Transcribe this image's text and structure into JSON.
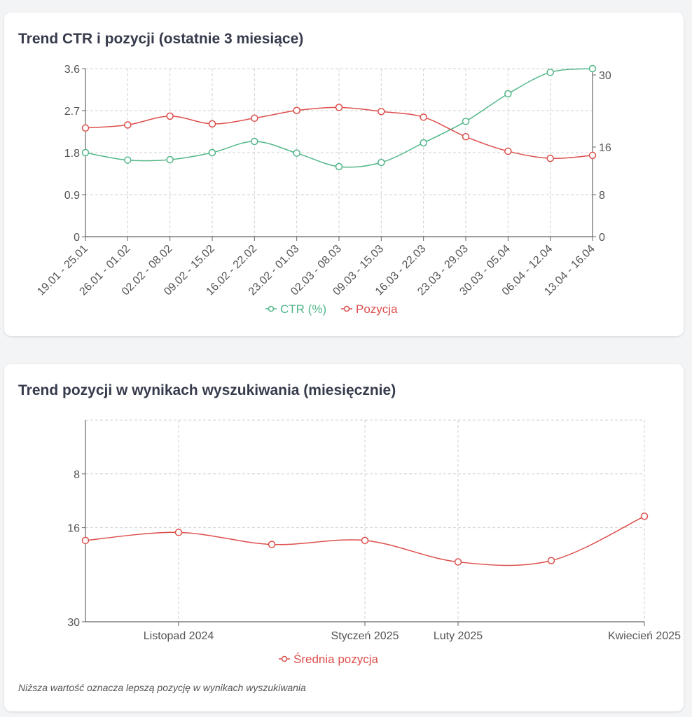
{
  "colors": {
    "ctr": "#52b788",
    "position": "#dc4f4b",
    "grid": "#d0d0d0",
    "axis": "#666666"
  },
  "chart_data": [
    {
      "type": "line",
      "title": "Trend CTR i pozycji (ostatnie 3 miesiące)",
      "categories": [
        "19.01 - 25.01",
        "26.01 - 01.02",
        "02.02 - 08.02",
        "09.02 - 15.02",
        "16.02 - 22.02",
        "23.02 - 01.03",
        "02.03 - 08.03",
        "09.03 - 15.03",
        "16.03 - 22.03",
        "23.03 - 29.03",
        "30.03 - 05.04",
        "06.04 - 12.04",
        "13.04 - 16.04"
      ],
      "y_left": {
        "ticks": [
          "0",
          "0.9",
          "1.8",
          "2.7",
          "3.6"
        ],
        "range": [
          0,
          3.6
        ]
      },
      "y_right": {
        "ticks": [
          "0",
          "8",
          "16",
          "30"
        ]
      },
      "series": [
        {
          "name": "CTR (%)",
          "axis": "left",
          "values": [
            1.8,
            1.64,
            1.65,
            1.8,
            2.04,
            1.79,
            1.5,
            1.59,
            2.01,
            2.47,
            3.06,
            3.52,
            3.6
          ]
        },
        {
          "name": "Pozycja",
          "axis": "right",
          "values": [
            19.7,
            20.3,
            22.0,
            20.5,
            21.6,
            23.1,
            23.7,
            22.9,
            21.8,
            18.0,
            15.3,
            14.1,
            14.6
          ]
        }
      ],
      "legend": "bottom-center",
      "grid": true
    },
    {
      "type": "line",
      "title": "Trend pozycji w wynikach wyszukiwania (miesięcznie)",
      "categories": [
        "",
        "Listopad 2024",
        "",
        "Styczeń 2025",
        "Luty 2025",
        "",
        "Kwiecień 2025"
      ],
      "y": {
        "ticks": [
          "8",
          "16",
          "30"
        ],
        "range": [
          0,
          30
        ],
        "reversed": true
      },
      "series": [
        {
          "name": "Średnia pozycja",
          "values": [
            17.9,
            16.7,
            18.5,
            17.9,
            21.1,
            20.9,
            14.3
          ]
        }
      ],
      "legend": "bottom-center",
      "grid": true,
      "note": "Niższa wartość oznacza lepszą pozycję w wynikach wyszukiwania"
    }
  ]
}
